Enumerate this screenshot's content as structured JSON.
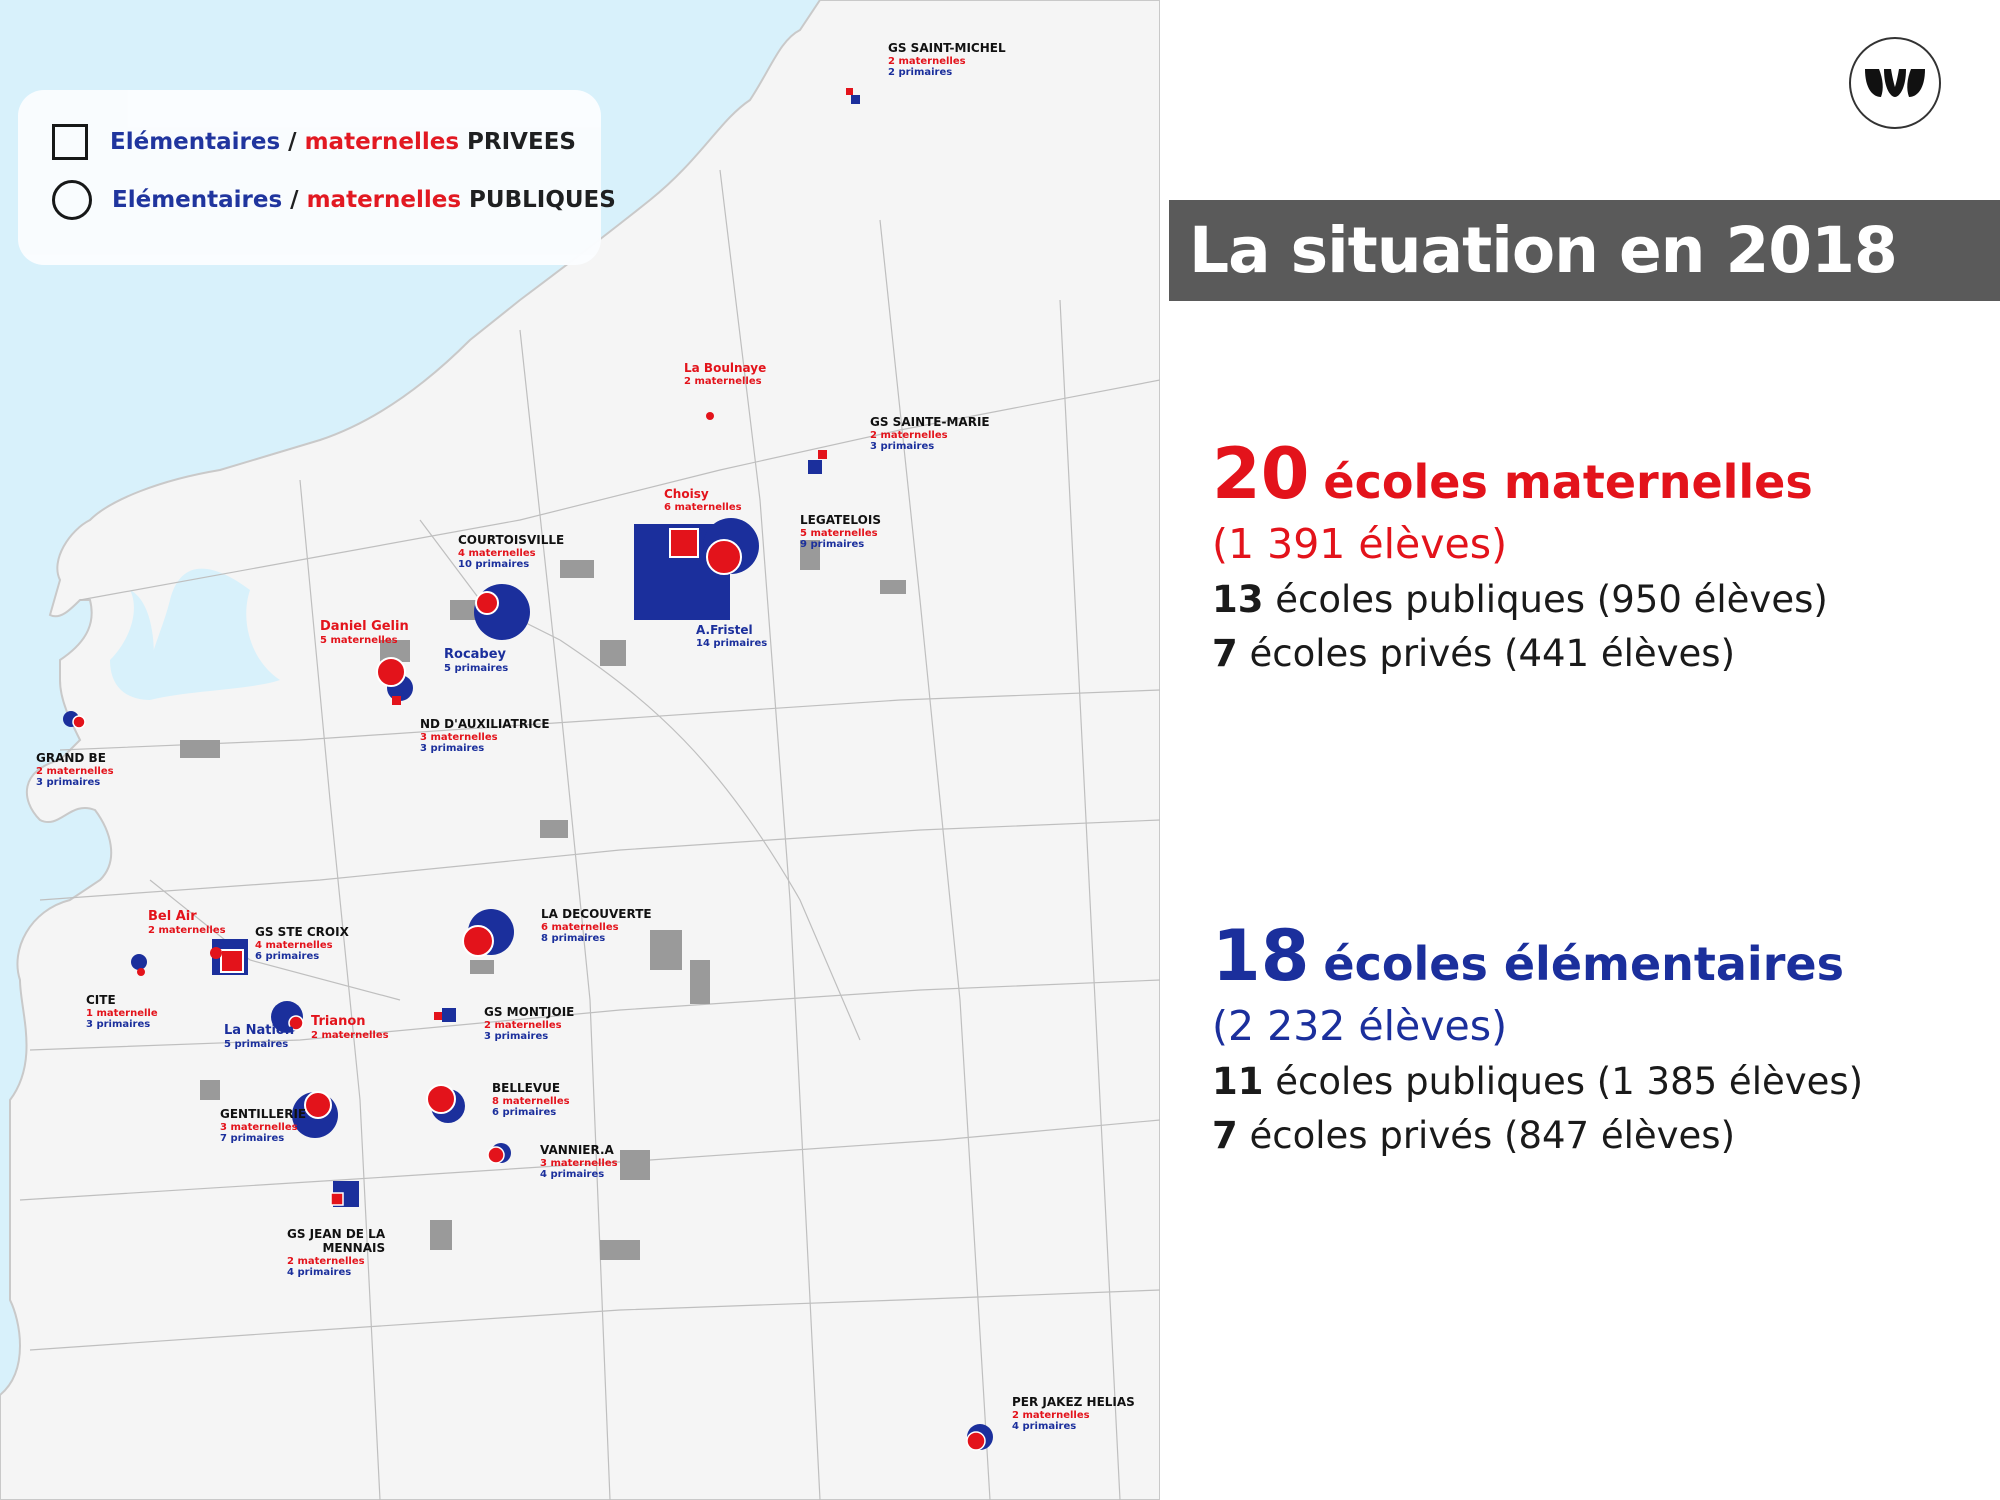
{
  "legend": {
    "private": {
      "elementaires": "Elémentaires",
      "sep": " / ",
      "maternelles": "maternelles",
      "kind": " PRIVEES"
    },
    "public": {
      "elementaires": "Elémentaires",
      "sep": " / ",
      "maternelles": "maternelles",
      "kind": " PUBLIQUES"
    }
  },
  "colors": {
    "public_elementary": "#1b2f9c",
    "maternelle": "#e3131b",
    "sea": "#d8f1fb",
    "title_bar": "#5a5a5a"
  },
  "title": "La situation en 2018",
  "stats": {
    "maternelles": {
      "count": "20",
      "label": "écoles maternelles",
      "eleves": "(1 391 élèves)",
      "publiques_count": "13",
      "publiques_text": " écoles publiques (950 élèves)",
      "prives_count": "7",
      "prives_text": " écoles privés (441 élèves)"
    },
    "elementaires": {
      "count": "18",
      "label": "écoles élémentaires",
      "eleves": "(2 232 élèves)",
      "publiques_count": "11",
      "publiques_text": " écoles publiques (1 385 élèves)",
      "prives_count": "7",
      "prives_text": " écoles privés (847 élèves)"
    }
  },
  "schools": [
    {
      "name": "GS SAINT-MICHEL",
      "mat": "2 maternelles",
      "prim": "2 primaires",
      "type": "private"
    },
    {
      "name": "La Boulnaye",
      "mat": "2 maternelles",
      "type": "public"
    },
    {
      "name": "GS SAINTE-MARIE",
      "mat": "2 maternelles",
      "prim": "3 primaires",
      "type": "private"
    },
    {
      "name": "Choisy",
      "mat": "6 maternelles",
      "type": "public"
    },
    {
      "name": "LEGATELOIS",
      "mat": "5 maternelles",
      "prim": "9 primaires",
      "type": "public"
    },
    {
      "name": "A.Fristel",
      "prim": "14 primaires",
      "type": "private"
    },
    {
      "name": "COURTOISVILLE",
      "mat": "4 maternelles",
      "prim": "10 primaires",
      "type": "public"
    },
    {
      "name": "Daniel Gelin",
      "mat": "5 maternelles",
      "type": "public"
    },
    {
      "name": "Rocabey",
      "prim": "5 primaires",
      "type": "public"
    },
    {
      "name": "ND D'AUXILIATRICE",
      "mat": "3 maternelles",
      "prim": "3 primaires",
      "type": "private"
    },
    {
      "name": "GRAND BE",
      "mat": "2 maternelles",
      "prim": "3 primaires",
      "type": "public"
    },
    {
      "name": "LA DECOUVERTE",
      "mat": "6 maternelles",
      "prim": "8 primaires",
      "type": "public"
    },
    {
      "name": "Bel Air",
      "mat": "2 maternelles",
      "type": "public"
    },
    {
      "name": "GS STE CROIX",
      "mat": "4 maternelles",
      "prim": "6 primaires",
      "type": "private"
    },
    {
      "name": "CITE",
      "mat": "1 maternelle",
      "prim": "3 primaires",
      "type": "public"
    },
    {
      "name": "La Nation",
      "prim": "5 primaires",
      "type": "public"
    },
    {
      "name": "Trianon",
      "mat": "2 maternelles",
      "type": "public"
    },
    {
      "name": "GS MONTJOIE",
      "mat": "2 maternelles",
      "prim": "3 primaires",
      "type": "private"
    },
    {
      "name": "BELLEVUE",
      "mat": "8 maternelles",
      "prim": "6 primaires",
      "type": "public"
    },
    {
      "name": "GENTILLERIE",
      "mat": "3 maternelles",
      "prim": "7 primaires",
      "type": "public"
    },
    {
      "name": "VANNIER.A",
      "mat": "3 maternelles",
      "prim": "4 primaires",
      "type": "public"
    },
    {
      "name": "GS JEAN DE LA",
      "name2": "MENNAIS",
      "mat": "2 maternelles",
      "prim": "4 primaires",
      "type": "private"
    },
    {
      "name": "PER JAKEZ HELIAS",
      "mat": "2 maternelles",
      "prim": "4 primaires",
      "type": "public"
    }
  ]
}
